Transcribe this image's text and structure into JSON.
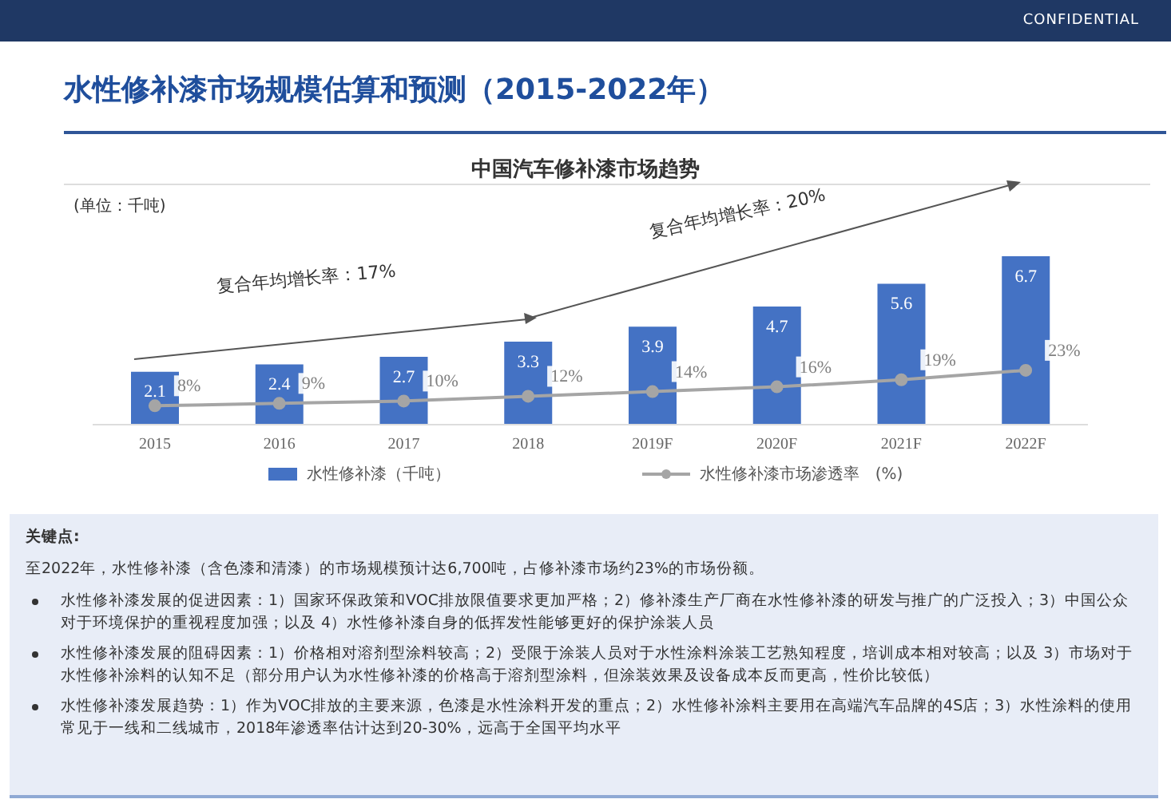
{
  "chart_data": {
    "type": "bar",
    "title": "水性修补漆市场规模估算和预测（2015-2022年）",
    "subtitle": "中国汽车修补漆市场趋势",
    "ylabel": "(单位：千吨)",
    "categories": [
      "2015",
      "2016",
      "2017",
      "2018",
      "2019F",
      "2020F",
      "2021F",
      "2022F"
    ],
    "series": [
      {
        "name": "水性修补漆（千吨）",
        "color": "#4472c4",
        "values": [
          2.1,
          2.4,
          2.7,
          3.3,
          3.9,
          4.7,
          5.6,
          6.7
        ]
      },
      {
        "name": "水性修补漆市场渗透率　(%)",
        "type": "line",
        "axis": "y2",
        "color": "#a5a5a5",
        "values": [
          8,
          9,
          10,
          12,
          14,
          16,
          19,
          23
        ],
        "value_labels": [
          "8%",
          "9%",
          "10%",
          "12%",
          "14%",
          "16%",
          "19%",
          "23%"
        ]
      }
    ],
    "data_labels": true,
    "marker": "circle",
    "legend": "bottom",
    "grid": false,
    "annotations": [
      "CONFIDENTIAL",
      "复合年均增长率：17%",
      "复合年均增长率：20%",
      "关键点:",
      "至2022年，水性修补漆（含色漆和清漆）的市场规模预计达6,700吨，占修补漆市场约23%的市场份额。",
      "水性修补漆发展的促进因素：1）国家环保政策和VOC排放限值要求更加严格；2）修补漆生产厂商在水性修补漆的研发与推广的广泛投入；3）中国公众对于环境保护的重视程度加强；以及 4）水性修补漆自身的低挥发性能够更好的保护涂装人员",
      "水性修补漆发展的阻碍因素：1）价格相对溶剂型涂料较高；2）受限于涂装人员对于水性涂料涂装工艺熟知程度，培训成本相对较高；以及 3）市场对于水性修补涂料的认知不足（部分用户认为水性修补漆的价格高于溶剂型涂料，但涂装效果及设备成本反而更高，性价比较低）",
      "水性修补漆发展趋势：1）作为VOC排放的主要来源，色漆是水性涂料开发的重点；2）水性修补涂料主要用在高端汽车品牌的4S店；3）水性涂料的使用常见于一线和二线城市，2018年渗透率估计达到20-30%，远高于全国平均水平"
    ]
  }
}
